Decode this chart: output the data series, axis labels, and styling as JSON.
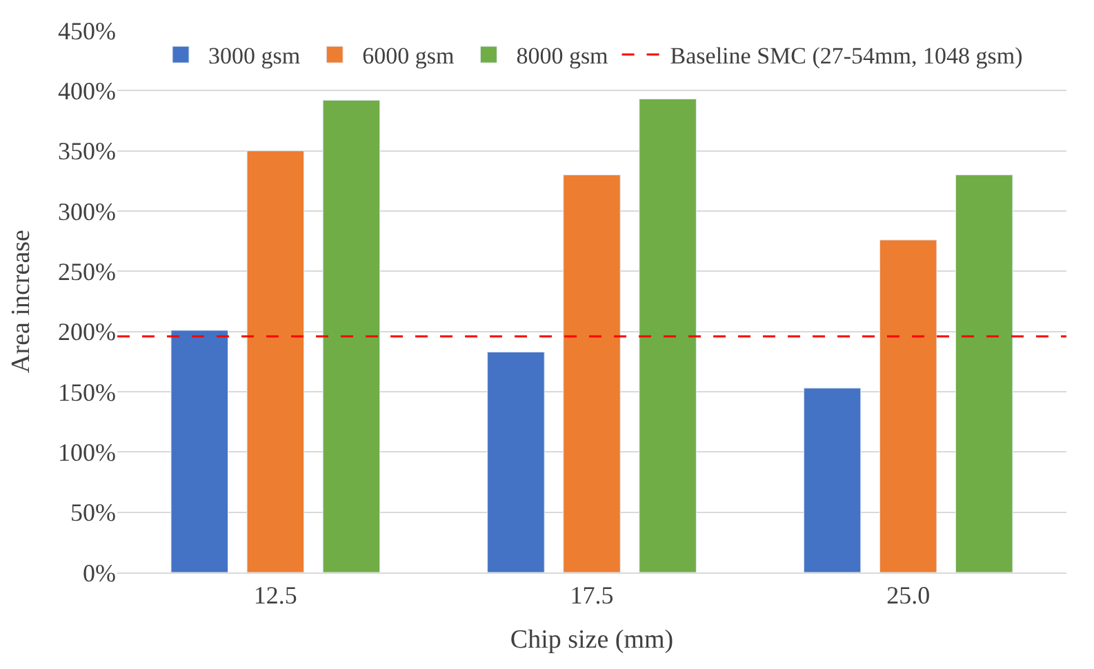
{
  "chart_data": {
    "type": "bar",
    "xlabel": "Chip size (mm)",
    "ylabel": "Area increase",
    "categories": [
      "12.5",
      "17.5",
      "25.0"
    ],
    "series": [
      {
        "name": "3000 gsm",
        "color": "#4472c4",
        "values": [
          201,
          183,
          153
        ]
      },
      {
        "name": "6000 gsm",
        "color": "#ed7d31",
        "values": [
          350,
          330,
          276
        ]
      },
      {
        "name": "8000 gsm",
        "color": "#70ad47",
        "values": [
          392,
          393,
          330
        ]
      }
    ],
    "ref_lines": [
      {
        "axis": "y",
        "value": 196,
        "label": "Baseline SMC (27-54mm, 1048 gsm)",
        "color": "#ff0000",
        "line_style": "dashed"
      }
    ],
    "ylim": [
      0,
      450
    ],
    "yticks": [
      {
        "value": 0,
        "label": "0%"
      },
      {
        "value": 50,
        "label": "50%"
      },
      {
        "value": 100,
        "label": "100%"
      },
      {
        "value": 150,
        "label": "150%"
      },
      {
        "value": 200,
        "label": "200%"
      },
      {
        "value": 250,
        "label": "250%"
      },
      {
        "value": 300,
        "label": "300%"
      },
      {
        "value": 350,
        "label": "350%"
      },
      {
        "value": 400,
        "label": "400%"
      },
      {
        "value": 450,
        "label": "450%"
      }
    ],
    "grid": "y",
    "legend": "top"
  }
}
